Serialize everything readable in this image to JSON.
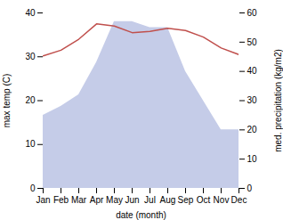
{
  "chart_data": {
    "type": "line",
    "xlabel": "date (month)",
    "ylabel": "max temp (C)",
    "y2label": "med. precipitation (kg/m2)",
    "categories": [
      "Jan",
      "Feb",
      "Mar",
      "Apr",
      "May",
      "Jun",
      "Jul",
      "Aug",
      "Sep",
      "Oct",
      "Nov",
      "Dec"
    ],
    "series": [
      {
        "type": "area",
        "axis": "y2",
        "color": "#c5cce8",
        "values": [
          25,
          28,
          32,
          43,
          57,
          57,
          55,
          55,
          40,
          30,
          20,
          20
        ]
      },
      {
        "type": "line",
        "color": "#c0504d",
        "values": [
          30.2,
          31.5,
          34.0,
          37.5,
          37.0,
          35.5,
          35.8,
          36.5,
          36.0,
          34.5,
          32.0,
          30.5
        ]
      }
    ],
    "ylim": [
      0,
      40
    ],
    "yticks": [
      0,
      10,
      20,
      30,
      40
    ],
    "y2lim": [
      0,
      60
    ],
    "y2ticks": [
      0,
      10,
      20,
      30,
      40,
      50,
      60
    ],
    "grid": false
  }
}
